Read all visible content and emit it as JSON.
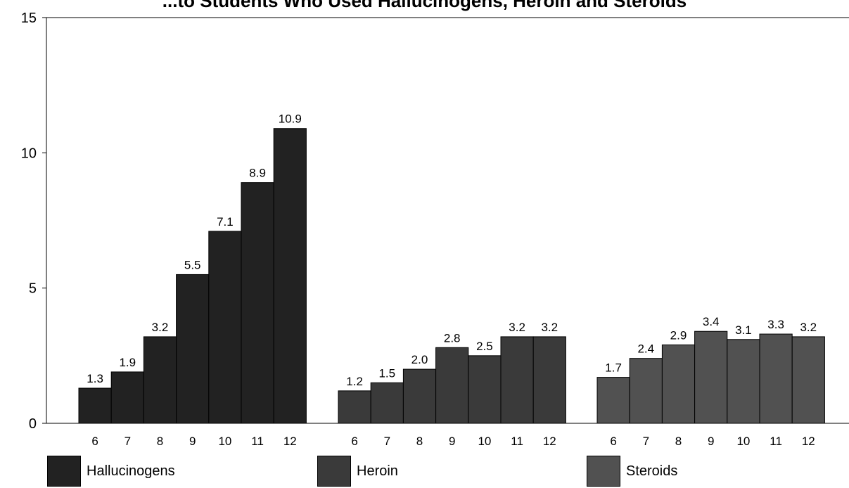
{
  "chart_data": {
    "type": "bar",
    "title": "...to Students Who Used Hallucinogens, Heroin and Steroids",
    "ylim": [
      0,
      15
    ],
    "yticks": [
      0,
      5,
      10,
      15
    ],
    "categories": [
      "6",
      "7",
      "8",
      "9",
      "10",
      "11",
      "12"
    ],
    "series": [
      {
        "name": "Hallucinogens",
        "color": "#222222",
        "values": [
          1.3,
          1.9,
          3.2,
          5.5,
          7.1,
          8.9,
          10.9
        ],
        "labels": [
          "1.3",
          "1.9",
          "3.2",
          "5.5",
          "7.1",
          "8.9",
          "10.9"
        ]
      },
      {
        "name": "Heroin",
        "color": "#3a3a3a",
        "values": [
          1.2,
          1.5,
          2.0,
          2.8,
          2.5,
          3.2,
          3.2
        ],
        "labels": [
          "1.2",
          "1.5",
          "2.0",
          "2.8",
          "2.5",
          "3.2",
          "3.2"
        ]
      },
      {
        "name": "Steroids",
        "color": "#515151",
        "values": [
          1.7,
          2.4,
          2.9,
          3.4,
          3.1,
          3.3,
          3.2
        ],
        "labels": [
          "1.7",
          "2.4",
          "2.9",
          "3.4",
          "3.1",
          "3.3",
          "3.2"
        ]
      }
    ],
    "legend_position": "bottom"
  }
}
